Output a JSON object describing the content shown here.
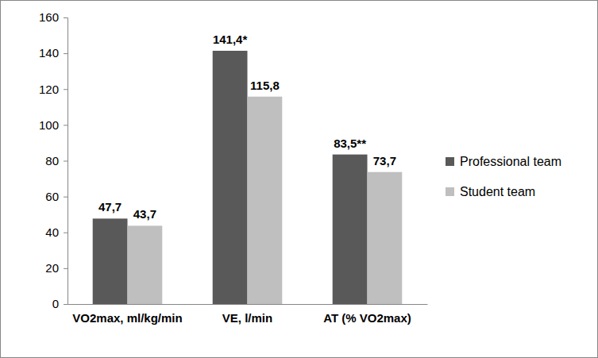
{
  "chart_data": {
    "type": "bar",
    "categories": [
      "VO2max, ml/kg/min",
      "VE, l/min",
      "AT (% VO2max)"
    ],
    "series": [
      {
        "name": "Professional team",
        "color": "#595959",
        "values": [
          47.7,
          141.4,
          83.5
        ],
        "value_labels": [
          "47,7",
          "141,4*",
          "83,5**"
        ]
      },
      {
        "name": "Student team",
        "color": "#bfbfbf",
        "values": [
          43.7,
          115.8,
          73.7
        ],
        "value_labels": [
          "43,7",
          "115,8",
          "73,7"
        ]
      }
    ],
    "ylim": [
      0,
      160
    ],
    "yticks": [
      0,
      20,
      40,
      60,
      80,
      100,
      120,
      140,
      160
    ],
    "grid": false,
    "legend": "right",
    "data_labels": true
  }
}
